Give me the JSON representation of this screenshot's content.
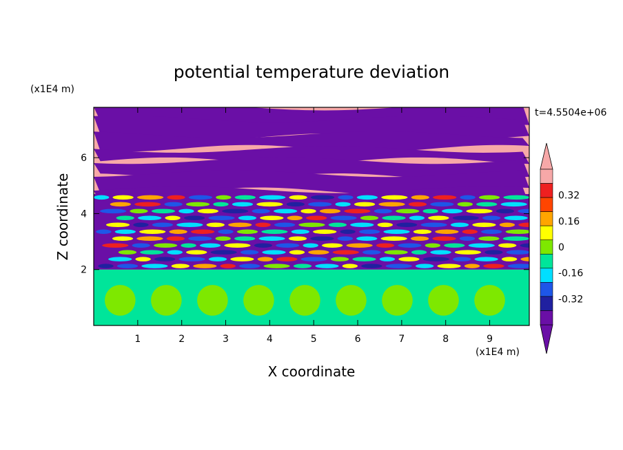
{
  "chart_data": {
    "type": "heatmap",
    "title": "potential temperature deviation",
    "xlabel": "X coordinate",
    "ylabel": "Z coordinate",
    "x_unit": "(x1E4 m)",
    "y_unit": "(x1E4 m)",
    "time_label": "t=4.5504e+06",
    "xlim": [
      0,
      9.9
    ],
    "ylim": [
      0,
      7.8
    ],
    "x_ticks": [
      1,
      2,
      3,
      4,
      5,
      6,
      7,
      8,
      9
    ],
    "y_ticks": [
      2,
      4,
      6
    ],
    "colorbar": {
      "levels": [
        -0.48,
        -0.4,
        -0.32,
        -0.24,
        -0.16,
        -0.08,
        0,
        0.08,
        0.16,
        0.24,
        0.32,
        0.4,
        0.48
      ],
      "tick_labels": [
        "0.32",
        "0.16",
        "0",
        "-0.16",
        "-0.32"
      ],
      "tick_values": [
        0.32,
        0.16,
        0,
        -0.16,
        -0.32
      ],
      "colors": [
        "#6a0fa6",
        "#2020a0",
        "#1e56e8",
        "#00dfff",
        "#00e59a",
        "#7ee800",
        "#ffff00",
        "#ffa500",
        "#ff4500",
        "#ee2020",
        "#f7a8a8"
      ],
      "extend_low_color": "#6a0fa6",
      "extend_high_color": "#f7a8a8"
    }
  }
}
